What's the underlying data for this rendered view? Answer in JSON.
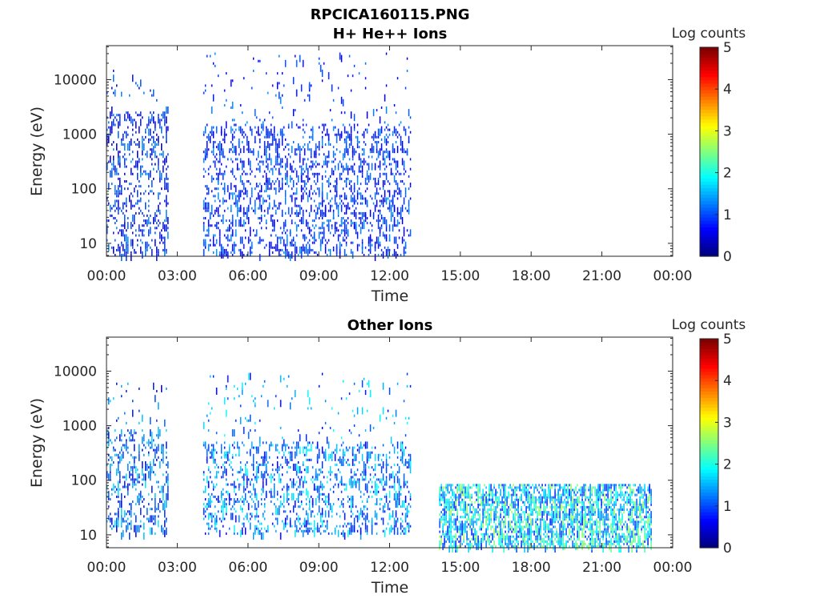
{
  "figure": {
    "title": "RPCICA160115.PNG",
    "colorbar_label": "Log counts",
    "colormap": "jet"
  },
  "chart_data": [
    {
      "type": "heatmap",
      "title": "H+ He++ Ions",
      "xlabel": "Time",
      "ylabel": "Energy (eV)",
      "x_ticks": [
        "00:00",
        "03:00",
        "06:00",
        "09:00",
        "12:00",
        "15:00",
        "18:00",
        "21:00",
        "00:00"
      ],
      "xlim_hours": [
        0,
        24
      ],
      "y_scale": "log",
      "y_ticks": [
        10,
        100,
        1000,
        10000
      ],
      "y_tick_labels": [
        "10",
        "100",
        "1000",
        "10000"
      ],
      "ylim": [
        5.8,
        42000
      ],
      "colorbar": {
        "min": 0,
        "max": 5,
        "ticks": [
          "0",
          "1",
          "2",
          "3",
          "4",
          "5"
        ]
      },
      "data_segments": [
        {
          "start": 0.0,
          "end": 2.6,
          "e_min": 5.8,
          "e_max": 15000,
          "dense_max": 2500,
          "level": 0.9
        },
        {
          "start": 4.1,
          "end": 12.9,
          "e_min": 5.8,
          "e_max": 30000,
          "dense_max": 1500,
          "level": 0.9
        }
      ]
    },
    {
      "type": "heatmap",
      "title": "Other Ions",
      "xlabel": "Time",
      "ylabel": "Energy (eV)",
      "x_ticks": [
        "00:00",
        "03:00",
        "06:00",
        "09:00",
        "12:00",
        "15:00",
        "18:00",
        "21:00",
        "00:00"
      ],
      "xlim_hours": [
        0,
        24
      ],
      "y_scale": "log",
      "y_ticks": [
        10,
        100,
        1000,
        10000
      ],
      "y_tick_labels": [
        "10",
        "100",
        "1000",
        "10000"
      ],
      "ylim": [
        5.8,
        42000
      ],
      "colorbar": {
        "min": 0,
        "max": 5,
        "ticks": [
          "0",
          "1",
          "2",
          "3",
          "4",
          "5"
        ]
      },
      "data_segments": [
        {
          "start": 0.0,
          "end": 2.6,
          "e_min": 10,
          "e_max": 6000,
          "dense_max": 800,
          "level": 1.2
        },
        {
          "start": 4.1,
          "end": 12.9,
          "e_min": 10,
          "e_max": 9000,
          "dense_max": 500,
          "level": 1.3
        },
        {
          "start": 14.1,
          "end": 23.1,
          "e_min": 5.8,
          "e_max": 85,
          "dense_max": 85,
          "level": 1.8
        }
      ]
    }
  ]
}
